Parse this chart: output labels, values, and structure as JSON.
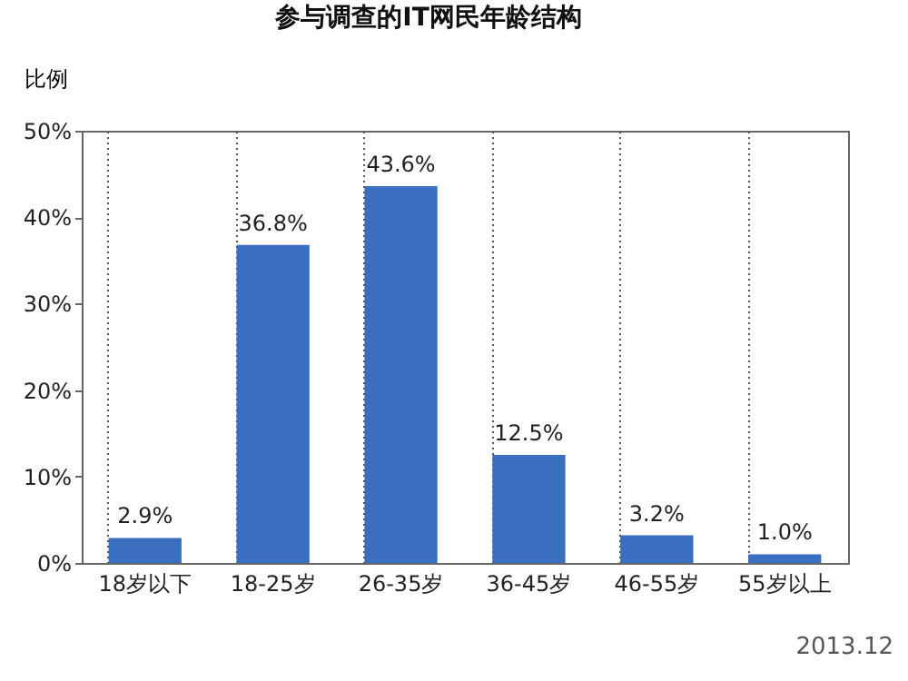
{
  "chart_data": {
    "type": "bar",
    "title": "参与调查的IT网民年龄结构",
    "ylabel": "比例",
    "categories": [
      "18岁以下",
      "18-25岁",
      "26-35岁",
      "36-45岁",
      "46-55岁",
      "55岁以上"
    ],
    "values": [
      2.9,
      36.8,
      43.6,
      12.5,
      3.2,
      1.0
    ],
    "value_labels": [
      "2.9%",
      "36.8%",
      "43.6%",
      "12.5%",
      "3.2%",
      "1.0%"
    ],
    "color": "#3a6fbf",
    "ylim": [
      0,
      50
    ],
    "yticks": [
      {
        "value": 0,
        "label": "0%"
      },
      {
        "value": 10,
        "label": "10%"
      },
      {
        "value": 20,
        "label": "20%"
      },
      {
        "value": 30,
        "label": "30%"
      },
      {
        "value": 40,
        "label": "40%"
      },
      {
        "value": 50,
        "label": "50%"
      }
    ],
    "grid": "x",
    "annotations": [
      "2013.12"
    ]
  }
}
